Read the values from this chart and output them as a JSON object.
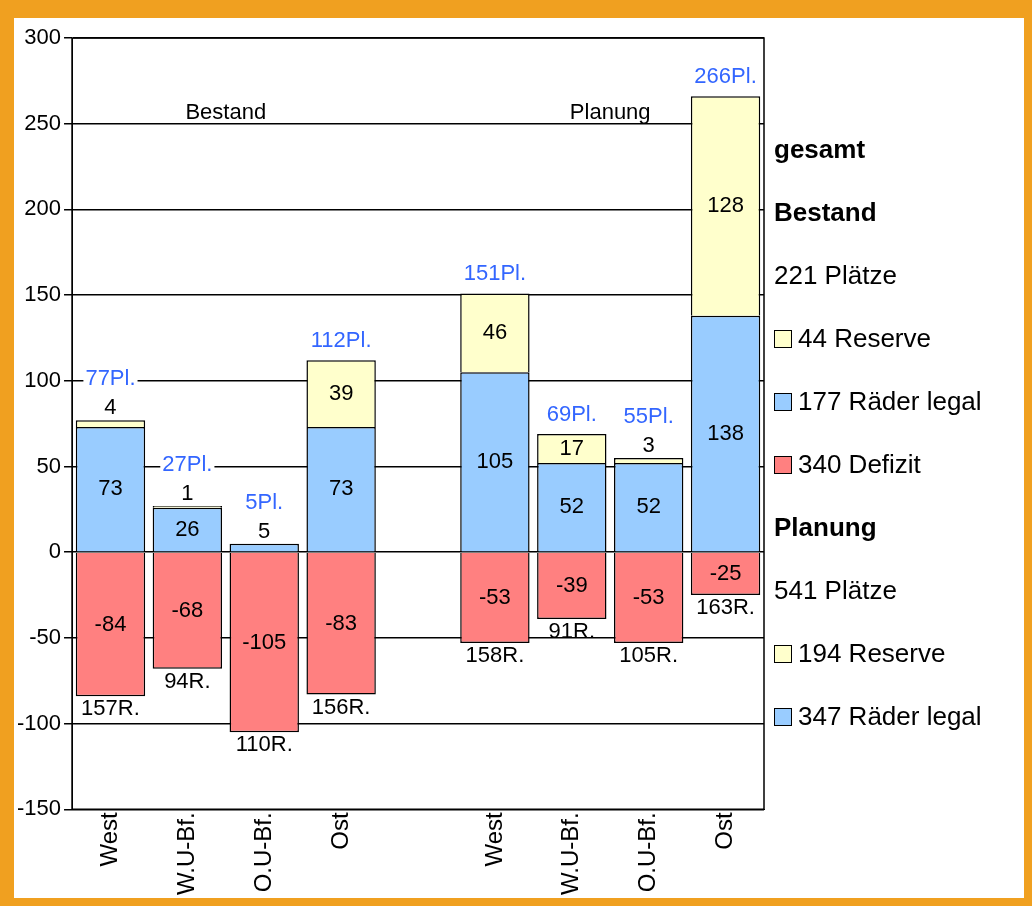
{
  "chart_data": {
    "type": "bar",
    "stacked": true,
    "categories": [
      "West",
      "W.U-Bf.",
      "O.U-Bf.",
      "Ost",
      null,
      "West",
      "W.U-Bf.",
      "O.U-Bf.",
      "Ost"
    ],
    "series": [
      {
        "name": "340 Defizit",
        "color": "#ff8080",
        "values": [
          -84,
          -68,
          -105,
          -83,
          null,
          null,
          null,
          null,
          null
        ]
      },
      {
        "name": "177 Räder legal",
        "color": "#99ccff",
        "values": [
          73,
          26,
          5,
          73,
          null,
          null,
          null,
          null,
          null
        ]
      },
      {
        "name": "44 Reserve",
        "color": "#ffffcc",
        "values": [
          4,
          1,
          null,
          39,
          null,
          null,
          null,
          null,
          null
        ]
      },
      {
        "color": "#ff8080",
        "values": [
          null,
          null,
          null,
          null,
          null,
          -53,
          -39,
          -53,
          -25
        ]
      },
      {
        "name": "347 Räder legal",
        "color": "#99ccff",
        "values": [
          null,
          null,
          null,
          null,
          null,
          105,
          52,
          52,
          138
        ]
      },
      {
        "name": "194 Reserve",
        "color": "#ffffcc",
        "values": [
          null,
          null,
          null,
          null,
          null,
          46,
          17,
          3,
          128
        ]
      }
    ],
    "data_labels": true,
    "ylim": [
      -150,
      300
    ],
    "yticks": [
      -150,
      -100,
      -50,
      0,
      50,
      100,
      150,
      200,
      250,
      300
    ],
    "grid": "y",
    "legend": "right",
    "legend_title": "gesamt",
    "annotations": [
      "Bestand",
      "Planung",
      "Bestand",
      "221 Plätze",
      "Planung",
      "541 Plätze",
      "77Pl.",
      "27Pl.",
      "5Pl.",
      "112Pl.",
      "151Pl.",
      "69Pl.",
      "55Pl.",
      "266Pl.",
      "157R.",
      "94R.",
      "110R.",
      "156R.",
      "158R.",
      "91R.",
      "105R.",
      "163R."
    ]
  }
}
